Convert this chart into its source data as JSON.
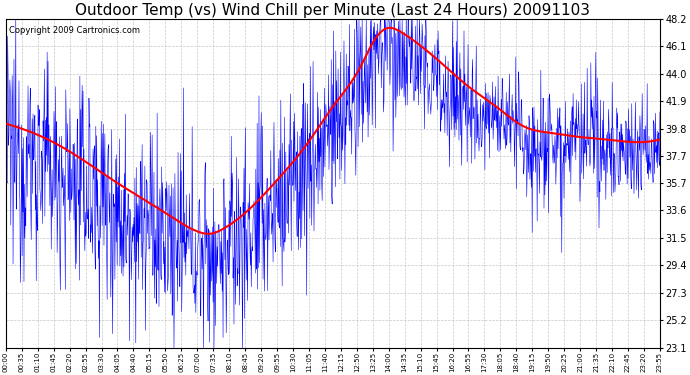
{
  "title": "Outdoor Temp (vs) Wind Chill per Minute (Last 24 Hours) 20091103",
  "copyright": "Copyright 2009 Cartronics.com",
  "background_color": "#ffffff",
  "plot_background": "#ffffff",
  "grid_color": "#c8c8c8",
  "grid_style": "--",
  "ylim": [
    23.1,
    48.2
  ],
  "yticks": [
    23.1,
    25.2,
    27.3,
    29.4,
    31.5,
    33.6,
    35.7,
    37.7,
    39.8,
    41.9,
    44.0,
    46.1,
    48.2
  ],
  "xtick_labels": [
    "00:00",
    "00:35",
    "01:10",
    "01:45",
    "02:20",
    "02:55",
    "03:30",
    "04:05",
    "04:40",
    "05:15",
    "05:50",
    "06:25",
    "07:00",
    "07:35",
    "08:10",
    "08:45",
    "09:20",
    "09:55",
    "10:30",
    "11:05",
    "11:40",
    "12:15",
    "12:50",
    "13:25",
    "14:00",
    "14:35",
    "15:10",
    "15:45",
    "16:20",
    "16:55",
    "17:30",
    "18:05",
    "18:40",
    "19:15",
    "19:50",
    "20:25",
    "21:00",
    "21:35",
    "22:10",
    "22:45",
    "23:20",
    "23:55"
  ],
  "outdoor_color": "#ff0000",
  "windchill_color": "#0000ff",
  "title_fontsize": 11,
  "copyright_fontsize": 6,
  "ylabel_fontsize": 7,
  "xlabel_fontsize": 5,
  "outdoor_key_times": [
    0,
    1,
    2,
    3,
    4,
    5,
    6,
    7,
    7.5,
    8,
    9,
    10,
    11,
    12,
    13,
    13.5,
    14,
    14.5,
    15,
    16,
    17,
    18,
    19,
    20,
    21,
    22,
    23,
    24
  ],
  "outdoor_key_values": [
    40.2,
    39.5,
    38.5,
    37.2,
    35.8,
    34.5,
    33.2,
    32.0,
    31.8,
    32.2,
    33.8,
    36.0,
    38.5,
    41.5,
    44.5,
    46.5,
    47.5,
    47.2,
    46.5,
    44.8,
    43.0,
    41.5,
    40.0,
    39.5,
    39.2,
    39.0,
    38.8,
    39.0
  ],
  "wc_noise_scale_by_hour": [
    4.5,
    4.0,
    4.0,
    4.0,
    4.0,
    3.5,
    3.5,
    3.0,
    3.5,
    3.5,
    4.0,
    4.0,
    3.5,
    3.5,
    3.0,
    3.0,
    3.0,
    3.0,
    2.5,
    2.5,
    2.5,
    1.5,
    2.5,
    2.5,
    2.5,
    2.0,
    2.0,
    2.0
  ],
  "wc_offset_by_hour": [
    -2.0,
    -2.0,
    -2.0,
    -2.0,
    -2.0,
    -2.0,
    -2.0,
    -1.5,
    -1.5,
    -1.5,
    -1.5,
    -1.5,
    -1.5,
    -1.5,
    -1.5,
    -1.5,
    -1.5,
    -1.5,
    -1.5,
    -1.5,
    -1.5,
    -0.5,
    -0.5,
    -0.5,
    -0.5,
    -0.5,
    -0.5,
    -0.5
  ]
}
